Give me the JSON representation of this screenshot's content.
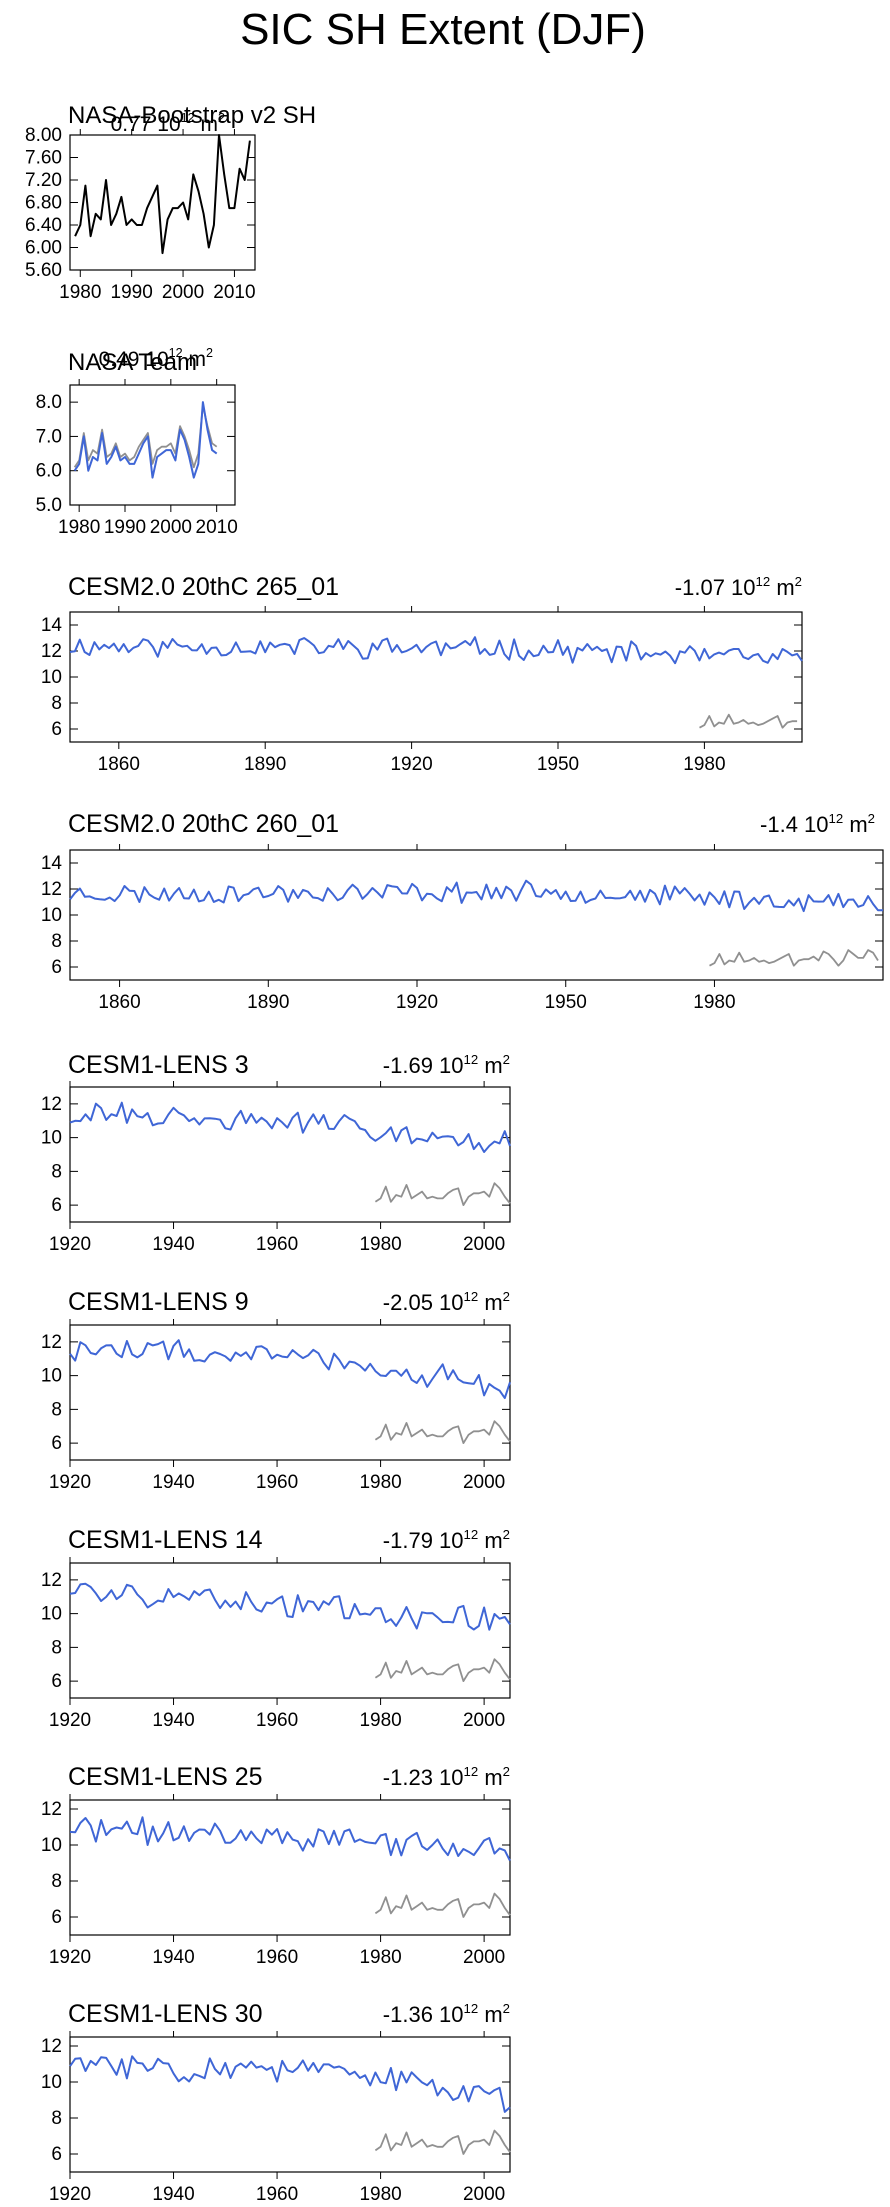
{
  "page": {
    "title": "SIC SH Extent (DJF)"
  },
  "colors": {
    "model": "#3f66d6",
    "obs": "#909090",
    "bootstrap": "#000000",
    "frame": "#000000"
  },
  "chart_data": [
    {
      "type": "line",
      "title": "NASA-Bootstrap v2 SH",
      "trend_value": "0.77",
      "trend_unit": "10¹² m²",
      "xlim": [
        1978,
        2014
      ],
      "ylim": [
        5.6,
        8.0
      ],
      "xticks": [
        1980,
        1990,
        2000,
        2010
      ],
      "yticks": [
        "5.60",
        "6.00",
        "6.40",
        "6.80",
        "7.20",
        "7.60",
        "8.00"
      ],
      "series": [
        {
          "role": "bootstrap",
          "x_start": 1979,
          "values": [
            6.2,
            6.4,
            7.1,
            6.2,
            6.6,
            6.5,
            7.2,
            6.4,
            6.6,
            6.9,
            6.4,
            6.5,
            6.4,
            6.4,
            6.7,
            6.9,
            7.1,
            5.9,
            6.5,
            6.7,
            6.7,
            6.8,
            6.5,
            7.3,
            7.0,
            6.6,
            6.0,
            6.4,
            8.0,
            7.3,
            6.7,
            6.7,
            7.4,
            7.2,
            7.9
          ]
        }
      ]
    },
    {
      "type": "line",
      "title": "NASA Team",
      "trend_value": "0.49",
      "trend_unit": "10¹² m²",
      "xlim": [
        1978,
        2014
      ],
      "ylim": [
        5.0,
        8.5
      ],
      "xticks": [
        1980,
        1990,
        2000,
        2010
      ],
      "yticks": [
        "5.0",
        "6.0",
        "7.0",
        "8.0"
      ],
      "series": [
        {
          "role": "obs",
          "x_start": 1979,
          "values": [
            6.1,
            6.3,
            7.1,
            6.3,
            6.6,
            6.5,
            7.2,
            6.4,
            6.5,
            6.8,
            6.4,
            6.5,
            6.3,
            6.4,
            6.7,
            6.9,
            7.1,
            6.2,
            6.6,
            6.7,
            6.7,
            6.8,
            6.5,
            7.3,
            7.0,
            6.6,
            6.1,
            6.5,
            7.9,
            7.3,
            6.8,
            6.7
          ]
        },
        {
          "role": "model",
          "x_start": 1979,
          "values": [
            6.0,
            6.2,
            7.0,
            6.0,
            6.4,
            6.3,
            7.1,
            6.2,
            6.4,
            6.7,
            6.3,
            6.4,
            6.2,
            6.2,
            6.5,
            6.8,
            7.0,
            5.8,
            6.4,
            6.5,
            6.6,
            6.6,
            6.3,
            7.2,
            6.9,
            6.4,
            5.8,
            6.2,
            8.0,
            7.2,
            6.6,
            6.5
          ]
        }
      ]
    },
    {
      "type": "line",
      "title": "CESM2.0 20thC 265_01",
      "trend_value": "-1.07",
      "trend_unit": "10¹² m²",
      "xlim": [
        1850,
        2000
      ],
      "ylim": [
        5,
        15
      ],
      "xticks": [
        1860,
        1890,
        1920,
        1950,
        1980
      ],
      "yticks": [
        "6",
        "8",
        "10",
        "12",
        "14"
      ],
      "series": [
        {
          "role": "model",
          "x_start": 1850,
          "seed": 11,
          "base": [
            12.4,
            12.2,
            11.3
          ],
          "noise": 0.7
        },
        {
          "role": "obs",
          "x_start": 1979,
          "values": [
            6.1,
            6.3,
            7.0,
            6.2,
            6.5,
            6.4,
            7.1,
            6.4,
            6.5,
            6.7,
            6.4,
            6.5,
            6.3,
            6.4,
            6.6,
            6.8,
            7.0,
            6.1,
            6.5,
            6.6,
            6.6
          ]
        }
      ]
    },
    {
      "type": "line",
      "title": "CESM2.0 20thC 260_01",
      "trend_value": "-1.4",
      "trend_unit": "10¹² m²",
      "xlim": [
        1850,
        2014
      ],
      "ylim": [
        5,
        15
      ],
      "xticks": [
        1860,
        1890,
        1920,
        1950,
        1980
      ],
      "yticks": [
        "6",
        "8",
        "10",
        "12",
        "14"
      ],
      "series": [
        {
          "role": "model",
          "x_start": 1850,
          "seed": 23,
          "base": [
            11.6,
            11.8,
            10.8
          ],
          "noise": 0.65
        },
        {
          "role": "obs",
          "x_start": 1979,
          "values": [
            6.1,
            6.3,
            7.0,
            6.2,
            6.5,
            6.4,
            7.1,
            6.4,
            6.5,
            6.7,
            6.4,
            6.5,
            6.3,
            6.4,
            6.6,
            6.8,
            7.0,
            6.1,
            6.5,
            6.6,
            6.6,
            6.8,
            6.5,
            7.2,
            7.0,
            6.6,
            6.1,
            6.5,
            7.3,
            7.0,
            6.7,
            6.7,
            7.3,
            7.1,
            6.5
          ]
        }
      ]
    },
    {
      "type": "line",
      "title": "CESM1-LENS 3",
      "trend_value": "-1.69",
      "trend_unit": "10¹² m²",
      "xlim": [
        1920,
        2005
      ],
      "ylim": [
        5,
        13
      ],
      "xticks": [
        1920,
        1940,
        1960,
        1980,
        2000
      ],
      "yticks": [
        "6",
        "8",
        "10",
        "12"
      ],
      "series": [
        {
          "role": "model",
          "x_start": 1920,
          "seed": 31,
          "base": [
            11.4,
            10.8,
            9.6
          ],
          "noise": 0.6
        },
        {
          "role": "obs",
          "x_start": 1979,
          "values": [
            6.2,
            6.4,
            7.1,
            6.2,
            6.6,
            6.5,
            7.2,
            6.4,
            6.6,
            6.8,
            6.4,
            6.5,
            6.4,
            6.4,
            6.7,
            6.9,
            7.0,
            6.0,
            6.5,
            6.7,
            6.7,
            6.8,
            6.5,
            7.3,
            7.0,
            6.5,
            6.1
          ]
        }
      ]
    },
    {
      "type": "line",
      "title": "CESM1-LENS 9",
      "trend_value": "-2.05",
      "trend_unit": "10¹² m²",
      "xlim": [
        1920,
        2005
      ],
      "ylim": [
        5,
        13
      ],
      "xticks": [
        1920,
        1940,
        1960,
        1980,
        2000
      ],
      "yticks": [
        "6",
        "8",
        "10",
        "12"
      ],
      "series": [
        {
          "role": "model",
          "x_start": 1920,
          "seed": 47,
          "base": [
            11.6,
            11.0,
            9.2
          ],
          "noise": 0.65
        },
        {
          "role": "obs",
          "x_start": 1979,
          "values": [
            6.2,
            6.4,
            7.1,
            6.2,
            6.6,
            6.5,
            7.2,
            6.4,
            6.6,
            6.8,
            6.4,
            6.5,
            6.4,
            6.4,
            6.7,
            6.9,
            7.0,
            6.0,
            6.5,
            6.7,
            6.7,
            6.8,
            6.5,
            7.3,
            7.0,
            6.5,
            6.1
          ]
        }
      ]
    },
    {
      "type": "line",
      "title": "CESM1-LENS 14",
      "trend_value": "-1.79",
      "trend_unit": "10¹² m²",
      "xlim": [
        1920,
        2005
      ],
      "ylim": [
        5,
        13
      ],
      "xticks": [
        1920,
        1940,
        1960,
        1980,
        2000
      ],
      "yticks": [
        "6",
        "8",
        "10",
        "12"
      ],
      "series": [
        {
          "role": "model",
          "x_start": 1920,
          "seed": 59,
          "base": [
            11.4,
            10.4,
            9.4
          ],
          "noise": 0.6
        },
        {
          "role": "obs",
          "x_start": 1979,
          "values": [
            6.2,
            6.4,
            7.1,
            6.2,
            6.6,
            6.5,
            7.2,
            6.4,
            6.6,
            6.8,
            6.4,
            6.5,
            6.4,
            6.4,
            6.7,
            6.9,
            7.0,
            6.0,
            6.5,
            6.7,
            6.7,
            6.8,
            6.5,
            7.3,
            7.0,
            6.5,
            6.1
          ]
        }
      ]
    },
    {
      "type": "line",
      "title": "CESM1-LENS 25",
      "trend_value": "-1.23",
      "trend_unit": "10¹² m²",
      "xlim": [
        1920,
        2005
      ],
      "ylim": [
        5,
        12.5
      ],
      "xticks": [
        1920,
        1940,
        1960,
        1980,
        2000
      ],
      "yticks": [
        "6",
        "8",
        "10",
        "12"
      ],
      "series": [
        {
          "role": "model",
          "x_start": 1920,
          "seed": 71,
          "base": [
            10.9,
            10.4,
            9.6
          ],
          "noise": 0.6
        },
        {
          "role": "obs",
          "x_start": 1979,
          "values": [
            6.2,
            6.4,
            7.1,
            6.2,
            6.6,
            6.5,
            7.2,
            6.4,
            6.6,
            6.8,
            6.4,
            6.5,
            6.4,
            6.4,
            6.7,
            6.9,
            7.0,
            6.0,
            6.5,
            6.7,
            6.7,
            6.8,
            6.5,
            7.3,
            7.0,
            6.5,
            6.1
          ]
        }
      ]
    },
    {
      "type": "line",
      "title": "CESM1-LENS 30",
      "trend_value": "-1.36",
      "trend_unit": "10¹² m²",
      "xlim": [
        1920,
        2005
      ],
      "ylim": [
        5,
        12.5
      ],
      "xticks": [
        1920,
        1940,
        1960,
        1980,
        2000
      ],
      "yticks": [
        "6",
        "8",
        "10",
        "12"
      ],
      "series": [
        {
          "role": "model",
          "x_start": 1920,
          "seed": 83,
          "base": [
            11.0,
            10.6,
            9.0
          ],
          "noise": 0.6
        },
        {
          "role": "obs",
          "x_start": 1979,
          "values": [
            6.2,
            6.4,
            7.1,
            6.2,
            6.6,
            6.5,
            7.2,
            6.4,
            6.6,
            6.8,
            6.4,
            6.5,
            6.4,
            6.4,
            6.7,
            6.9,
            7.0,
            6.0,
            6.5,
            6.7,
            6.7,
            6.8,
            6.5,
            7.3,
            7.0,
            6.5,
            6.1
          ]
        }
      ]
    }
  ]
}
